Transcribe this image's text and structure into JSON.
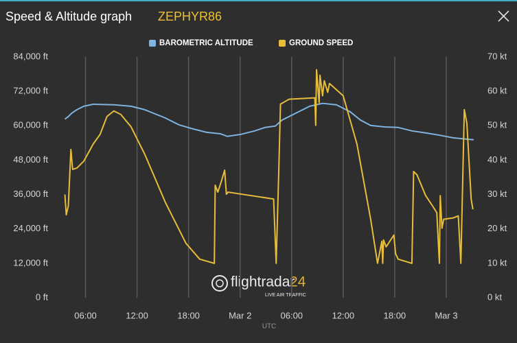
{
  "chart_data": {
    "type": "line",
    "title": "Speed & Altitude graph",
    "subtitle": "ZEPHYR86",
    "x_label": "UTC",
    "watermark": {
      "brand": "flightradar",
      "brand_suffix": "24",
      "tagline": "LIVE AIR TRAFFIC"
    },
    "grid": "vertical",
    "xlim": [
      3,
      51.2
    ],
    "xticks": [
      {
        "value": 6,
        "label": "06:00"
      },
      {
        "value": 12,
        "label": "12:00"
      },
      {
        "value": 18,
        "label": "18:00"
      },
      {
        "value": 24,
        "label": "Mar 2"
      },
      {
        "value": 30,
        "label": "06:00"
      },
      {
        "value": 36,
        "label": "12:00"
      },
      {
        "value": 42,
        "label": "18:00"
      },
      {
        "value": 48,
        "label": "Mar 3"
      }
    ],
    "ylim": [
      0,
      84000
    ],
    "yticks": [
      {
        "value": 0,
        "label": "0 ft"
      },
      {
        "value": 12000,
        "label": "12,000 ft"
      },
      {
        "value": 24000,
        "label": "24,000 ft"
      },
      {
        "value": 36000,
        "label": "36,000 ft"
      },
      {
        "value": 48000,
        "label": "48,000 ft"
      },
      {
        "value": 60000,
        "label": "60,000 ft"
      },
      {
        "value": 72000,
        "label": "72,000 ft"
      },
      {
        "value": 84000,
        "label": "84,000 ft"
      }
    ],
    "y2lim": [
      0,
      70
    ],
    "y2ticks": [
      {
        "value": 0,
        "label": "0 kt"
      },
      {
        "value": 10,
        "label": "10 kt"
      },
      {
        "value": 20,
        "label": "20 kt"
      },
      {
        "value": 30,
        "label": "30 kt"
      },
      {
        "value": 40,
        "label": "40 kt"
      },
      {
        "value": 50,
        "label": "50 kt"
      },
      {
        "value": 60,
        "label": "60 kt"
      },
      {
        "value": 70,
        "label": "70 kt"
      }
    ],
    "series": [
      {
        "name": "BAROMETRIC ALTITUDE",
        "color": "#7fb3e0",
        "x": [
          3.6,
          4.0,
          4.4,
          5.0,
          5.8,
          6.9,
          9.3,
          11.3,
          12.9,
          15.3,
          16.9,
          18.5,
          20.1,
          21.7,
          22.5,
          24.1,
          25.7,
          26.9,
          28.1,
          28.9,
          30.5,
          32.1,
          33.6,
          35.2,
          36.8,
          38.0,
          39.2,
          40.8,
          42.4,
          44.0,
          45.6,
          47.2,
          48.8,
          50.4,
          51.2
        ],
        "values": [
          62300,
          63200,
          64400,
          65600,
          66800,
          67500,
          67300,
          66800,
          65600,
          62700,
          60300,
          58900,
          57700,
          57200,
          56300,
          57000,
          58200,
          59400,
          59900,
          62000,
          64400,
          66800,
          67800,
          67300,
          64900,
          62000,
          60100,
          59600,
          59400,
          58200,
          57500,
          56700,
          55800,
          55300,
          55100
        ]
      },
      {
        "name": "GROUND SPEED",
        "color": "#e8bd3a",
        "axis": "y2",
        "x": [
          3.6,
          3.76,
          4.0,
          4.3,
          4.5,
          5.0,
          5.8,
          6.9,
          7.7,
          8.5,
          9.3,
          10.1,
          11.3,
          12.9,
          15.3,
          17.7,
          19.3,
          21.0,
          21.1,
          21.4,
          21.8,
          22.2,
          22.4,
          22.6,
          27.9,
          28.2,
          28.5,
          28.7,
          29.0,
          29.7,
          32.7,
          32.8,
          32.9,
          33.2,
          33.3,
          33.6,
          33.8,
          34.2,
          34.4,
          36.0,
          37.6,
          39.2,
          40.0,
          40.5,
          40.6,
          40.7,
          41.0,
          41.9,
          42.1,
          42.4,
          44.0,
          44.2,
          44.6,
          45.6,
          46.4,
          46.9,
          47.2,
          47.3,
          47.5,
          47.7,
          48.8,
          49.4,
          49.7,
          50.1,
          50.4,
          50.9,
          51.1
        ],
        "values": [
          30,
          24.1,
          26.7,
          43.1,
          37.3,
          37.7,
          39.7,
          44.7,
          47.5,
          52.7,
          54.3,
          53.3,
          49.7,
          41.7,
          27.7,
          15.8,
          11.2,
          10,
          32.7,
          30.7,
          33.7,
          37.1,
          30.1,
          30.7,
          28.7,
          10,
          36.7,
          56.3,
          56.7,
          57.7,
          58.1,
          50.1,
          66.3,
          56.7,
          64.7,
          58.7,
          63.1,
          59.7,
          62.3,
          58.7,
          44.7,
          22.8,
          10,
          16.4,
          10,
          16.8,
          14.8,
          18.2,
          12.8,
          11.2,
          10,
          36.7,
          35.7,
          29.7,
          26.7,
          24.7,
          10,
          29.7,
          20.2,
          22.8,
          23.2,
          23.8,
          10,
          54.7,
          50.7,
          28.7,
          25.7
        ]
      }
    ]
  }
}
